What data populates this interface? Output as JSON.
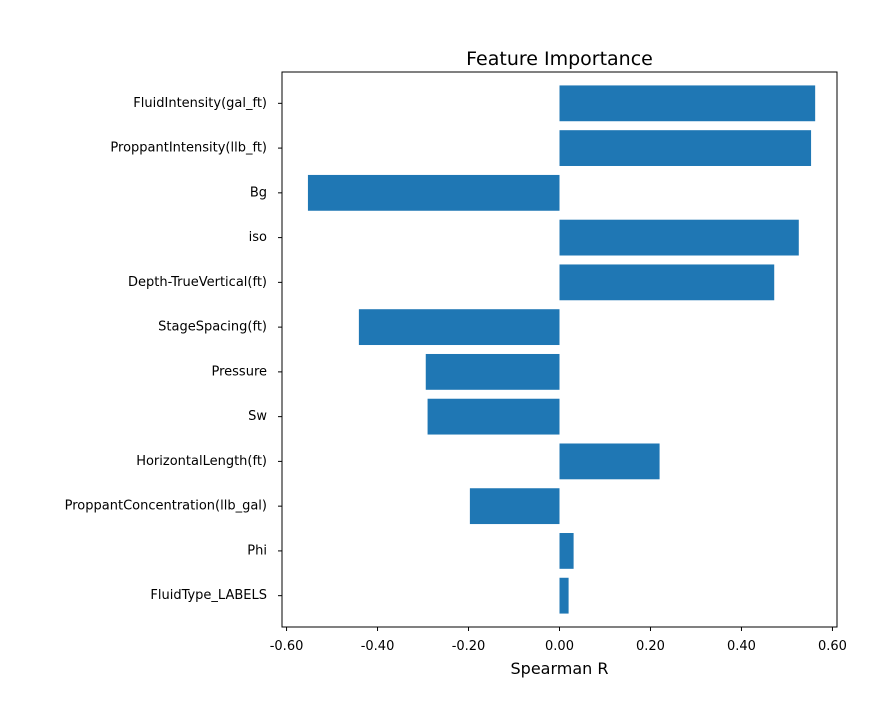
{
  "chart_data": {
    "type": "bar",
    "orientation": "horizontal",
    "title": "Feature Importance",
    "xlabel": "Spearman R",
    "ylabel": "",
    "xlim": [
      -0.61,
      0.61
    ],
    "xticks": [
      -0.6,
      -0.4,
      -0.2,
      0.0,
      0.2,
      0.4,
      0.6
    ],
    "xtick_labels": [
      "-0.60",
      "-0.40",
      "-0.20",
      "0.00",
      "0.20",
      "0.40",
      "0.60"
    ],
    "grid": false,
    "bar_color": "#1f77b4",
    "categories": [
      "FluidIntensity(gal_ft)",
      "ProppantIntensity(llb_ft)",
      "Bg",
      "iso",
      "Depth-TrueVertical(ft)",
      "StageSpacing(ft)",
      "Pressure",
      "Sw",
      "HorizontalLength(ft)",
      "ProppantConcentration(llb_gal)",
      "Phi",
      "FluidType_LABELS"
    ],
    "values": [
      0.562,
      0.553,
      -0.553,
      0.526,
      0.472,
      -0.441,
      -0.294,
      -0.29,
      0.22,
      -0.197,
      0.031,
      0.02
    ]
  }
}
